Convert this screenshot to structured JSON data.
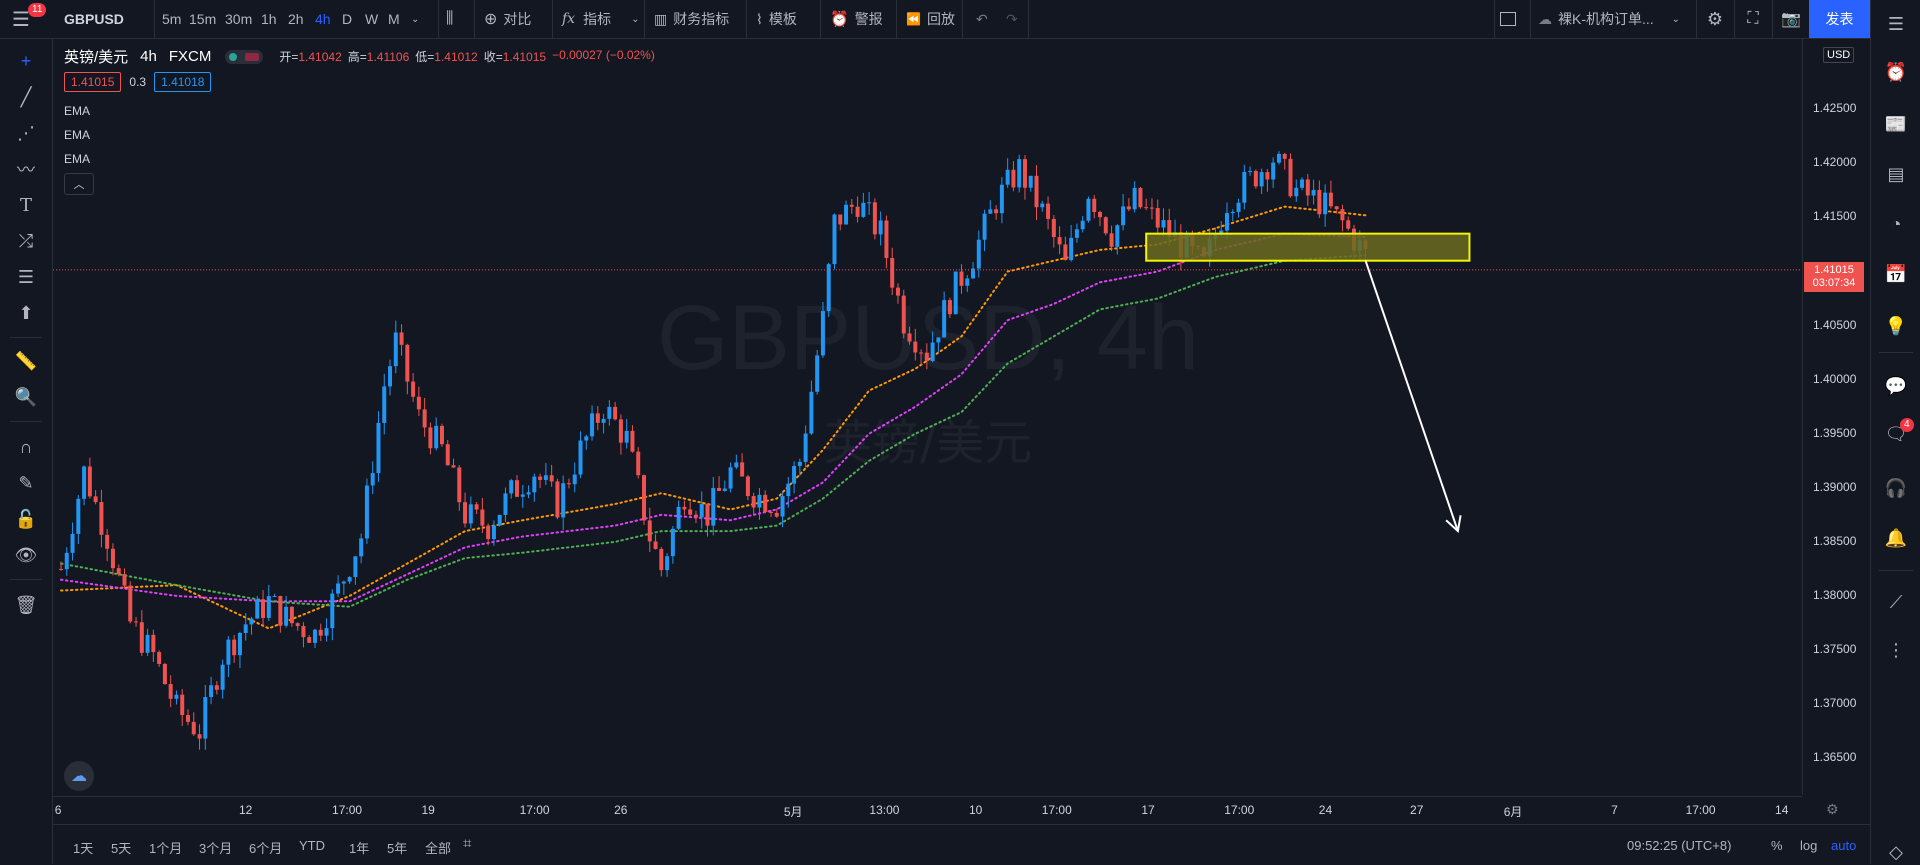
{
  "toolbar": {
    "symbol": "GBPUSD",
    "notification_count": "11",
    "intervals": [
      "5m",
      "15m",
      "30m",
      "1h",
      "2h",
      "4h",
      "D",
      "W",
      "M"
    ],
    "active_interval": "4h",
    "compare": "对比",
    "indicators": "指标",
    "financials": "财务指标",
    "templates": "模板",
    "alerts": "警报",
    "replay": "回放",
    "layout_name": "裸K-机构订单...",
    "publish": "发表"
  },
  "legend": {
    "title": "英镑/美元",
    "interval": "4h",
    "exchange": "FXCM",
    "open_label": "开=",
    "open": "1.41042",
    "high_label": "高=",
    "high": "1.41106",
    "low_label": "低=",
    "low": "1.41012",
    "close_label": "收=",
    "close": "1.41015",
    "change": "−0.00027 (−0.02%)",
    "bid": "1.41015",
    "spread": "0.3",
    "ask": "1.41018",
    "indicators": [
      "EMA",
      "EMA",
      "EMA"
    ]
  },
  "watermark": {
    "symbol": "GBPUSD, 4h",
    "name": "英镑/美元"
  },
  "price_axis": {
    "currency": "USD",
    "labels": [
      "1.42500",
      "1.42000",
      "1.41500",
      "1.40500",
      "1.40000",
      "1.39500",
      "1.39000",
      "1.38500",
      "1.38000",
      "1.37500",
      "1.37000",
      "1.36500"
    ],
    "current_price": "1.41015",
    "countdown": "03:07:34"
  },
  "time_axis": {
    "labels": [
      "6",
      "12",
      "17:00",
      "19",
      "17:00",
      "26",
      "5月",
      "13:00",
      "10",
      "17:00",
      "17",
      "17:00",
      "24",
      "27",
      "6月",
      "7",
      "17:00",
      "14"
    ]
  },
  "bottom_bar": {
    "ranges": [
      "1天",
      "5天",
      "1个月",
      "3个月",
      "6个月",
      "YTD",
      "1年",
      "5年",
      "全部"
    ],
    "clock": "09:52:25 (UTC+8)",
    "percent": "%",
    "log": "log",
    "auto": "auto"
  },
  "right_panel": {
    "chat_badge": "4"
  },
  "colors": {
    "background": "#131722",
    "up": "#2196f3",
    "down": "#ef5350",
    "ema_fast": "#ff9800",
    "ema_mid": "#e040fb",
    "ema_slow": "#4caf50",
    "zone_fill": "#6b6b1e",
    "zone_border": "#f5f500",
    "accent": "#2962ff"
  },
  "chart_data": {
    "type": "candlestick",
    "symbol": "GBPUSD",
    "interval": "4h",
    "y_range": [
      1.3615,
      1.4315
    ],
    "close_trend": [
      [
        0,
        1.3825
      ],
      [
        4,
        1.3915
      ],
      [
        8,
        1.3855
      ],
      [
        12,
        1.3775
      ],
      [
        16,
        1.3745
      ],
      [
        20,
        1.3695
      ],
      [
        24,
        1.3675
      ],
      [
        28,
        1.3745
      ],
      [
        32,
        1.3775
      ],
      [
        36,
        1.3795
      ],
      [
        40,
        1.3775
      ],
      [
        44,
        1.3765
      ],
      [
        48,
        1.3805
      ],
      [
        52,
        1.3855
      ],
      [
        56,
        1.3995
      ],
      [
        58,
        1.4035
      ],
      [
        62,
        1.3965
      ],
      [
        66,
        1.3935
      ],
      [
        70,
        1.3875
      ],
      [
        74,
        1.3865
      ],
      [
        78,
        1.3895
      ],
      [
        82,
        1.3915
      ],
      [
        86,
        1.3885
      ],
      [
        90,
        1.3935
      ],
      [
        94,
        1.3975
      ],
      [
        98,
        1.3945
      ],
      [
        102,
        1.3855
      ],
      [
        104,
        1.3825
      ],
      [
        108,
        1.3895
      ],
      [
        112,
        1.3875
      ],
      [
        116,
        1.3915
      ],
      [
        120,
        1.3895
      ],
      [
        124,
        1.3885
      ],
      [
        128,
        1.3925
      ],
      [
        132,
        1.4055
      ],
      [
        134,
        1.4145
      ],
      [
        138,
        1.4165
      ],
      [
        142,
        1.4135
      ],
      [
        146,
        1.4055
      ],
      [
        150,
        1.4025
      ],
      [
        154,
        1.4075
      ],
      [
        158,
        1.4115
      ],
      [
        162,
        1.4165
      ],
      [
        166,
        1.4195
      ],
      [
        170,
        1.4155
      ],
      [
        174,
        1.4105
      ],
      [
        178,
        1.4175
      ],
      [
        182,
        1.4135
      ],
      [
        186,
        1.4165
      ],
      [
        190,
        1.4145
      ],
      [
        194,
        1.4125
      ],
      [
        198,
        1.4105
      ],
      [
        202,
        1.4165
      ],
      [
        206,
        1.4185
      ],
      [
        210,
        1.4205
      ],
      [
        214,
        1.4175
      ],
      [
        218,
        1.4165
      ],
      [
        222,
        1.4145
      ],
      [
        226,
        1.4115
      ]
    ],
    "ema_fast": [
      [
        0,
        1.3805
      ],
      [
        20,
        1.381
      ],
      [
        36,
        1.377
      ],
      [
        50,
        1.38
      ],
      [
        60,
        1.383
      ],
      [
        70,
        1.386
      ],
      [
        80,
        1.387
      ],
      [
        96,
        1.3885
      ],
      [
        104,
        1.3895
      ],
      [
        116,
        1.388
      ],
      [
        124,
        1.389
      ],
      [
        132,
        1.3935
      ],
      [
        140,
        1.399
      ],
      [
        148,
        1.401
      ],
      [
        156,
        1.404
      ],
      [
        164,
        1.41
      ],
      [
        172,
        1.411
      ],
      [
        180,
        1.412
      ],
      [
        190,
        1.4125
      ],
      [
        200,
        1.414
      ],
      [
        212,
        1.416
      ],
      [
        226,
        1.4152
      ]
    ],
    "ema_mid": [
      [
        0,
        1.3815
      ],
      [
        20,
        1.38
      ],
      [
        36,
        1.3795
      ],
      [
        50,
        1.3795
      ],
      [
        60,
        1.382
      ],
      [
        70,
        1.3845
      ],
      [
        80,
        1.3855
      ],
      [
        96,
        1.3865
      ],
      [
        104,
        1.3875
      ],
      [
        116,
        1.387
      ],
      [
        124,
        1.388
      ],
      [
        132,
        1.3905
      ],
      [
        140,
        1.395
      ],
      [
        148,
        1.3975
      ],
      [
        156,
        1.4005
      ],
      [
        164,
        1.4055
      ],
      [
        172,
        1.407
      ],
      [
        180,
        1.409
      ],
      [
        190,
        1.41
      ],
      [
        200,
        1.412
      ],
      [
        212,
        1.4135
      ],
      [
        226,
        1.4132
      ]
    ],
    "ema_slow": [
      [
        0,
        1.383
      ],
      [
        20,
        1.381
      ],
      [
        36,
        1.3795
      ],
      [
        50,
        1.379
      ],
      [
        60,
        1.3815
      ],
      [
        70,
        1.3835
      ],
      [
        80,
        1.384
      ],
      [
        96,
        1.385
      ],
      [
        104,
        1.386
      ],
      [
        116,
        1.386
      ],
      [
        124,
        1.3865
      ],
      [
        132,
        1.389
      ],
      [
        140,
        1.3925
      ],
      [
        148,
        1.395
      ],
      [
        156,
        1.397
      ],
      [
        164,
        1.4015
      ],
      [
        172,
        1.404
      ],
      [
        180,
        1.4065
      ],
      [
        190,
        1.4075
      ],
      [
        200,
        1.4095
      ],
      [
        212,
        1.411
      ],
      [
        226,
        1.4115
      ]
    ],
    "zone": {
      "top": 1.4135,
      "bottom": 1.411,
      "x_start": 188,
      "x_end": 244
    },
    "arrow": {
      "from": [
        226,
        1.411
      ],
      "to": [
        242,
        1.386
      ]
    },
    "bars_count": 227,
    "x_slots": 303
  }
}
